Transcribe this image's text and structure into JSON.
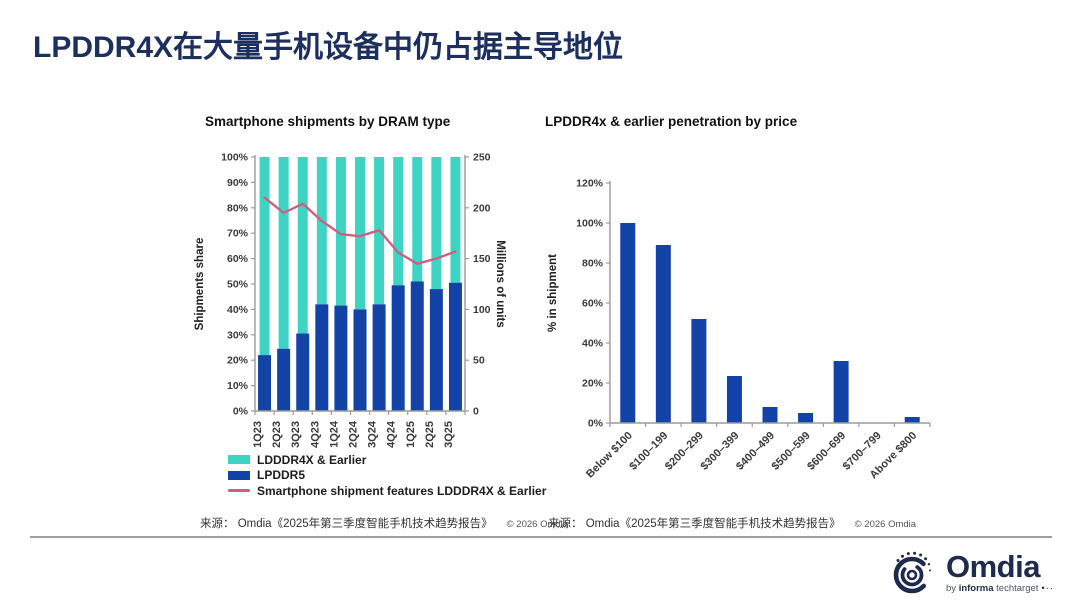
{
  "page": {
    "title": "LPDDR4X在大量手机设备中仍占据主导地位",
    "colors": {
      "title_navy": "#1c2f5e",
      "teal": "#3dd4c4",
      "blue": "#1443a8",
      "pink": "#cf5f80",
      "axis_gray": "#9b9b9b",
      "tick_text": "#3a3a3a"
    }
  },
  "chart_data": [
    {
      "type": "bar",
      "subtype": "stacked-100-bar-with-line",
      "title": "Smartphone shipments by DRAM type",
      "categories": [
        "1Q23",
        "2Q23",
        "3Q23",
        "4Q23",
        "1Q24",
        "2Q24",
        "3Q24",
        "4Q24",
        "1Q25",
        "2Q25",
        "3Q25"
      ],
      "series": [
        {
          "name": "LDDDR4X & Earlier",
          "type": "bar",
          "color": "#3dd4c4",
          "values": [
            78,
            75.5,
            69.5,
            58,
            58.5,
            60,
            58,
            50.5,
            49,
            52,
            49.5
          ]
        },
        {
          "name": "LPDDR5",
          "type": "bar",
          "color": "#1443a8",
          "values": [
            22,
            24.5,
            30.5,
            42,
            41.5,
            40,
            42,
            49.5,
            51,
            48,
            50.5
          ]
        },
        {
          "name": "Smartphone shipment features LDDDR4X & Earlier",
          "type": "line",
          "axis": "right",
          "color": "#cf5f80",
          "values_millions": [
            210,
            195,
            204,
            187,
            174,
            172,
            178,
            156,
            145,
            150,
            157
          ]
        }
      ],
      "ylabel_left": "Shipments share",
      "ylabel_right": "Millions of units",
      "ylim_left": [
        0,
        100
      ],
      "ylim_right": [
        0,
        250
      ],
      "yticks_left": [
        "0%",
        "10%",
        "20%",
        "30%",
        "40%",
        "50%",
        "60%",
        "70%",
        "80%",
        "90%",
        "100%"
      ],
      "yticks_right": [
        "0",
        "50",
        "100",
        "150",
        "200",
        "250"
      ],
      "legend_position": "bottom-left",
      "grid": false
    },
    {
      "type": "bar",
      "title": "LPDDR4x & earlier penetration by price",
      "categories": [
        "Below $100",
        "$100–199",
        "$200–299",
        "$300–399",
        "$400–499",
        "$500–599",
        "$600–699",
        "$700–799",
        "Above $800"
      ],
      "values": [
        100,
        89,
        52,
        23.5,
        8,
        5,
        31,
        0,
        3
      ],
      "bar_color": "#1443a8",
      "ylabel": "% in shipment",
      "xlabel": "",
      "ylim": [
        0,
        120
      ],
      "yticks": [
        "0%",
        "20%",
        "40%",
        "60%",
        "80%",
        "100%",
        "120%"
      ],
      "grid": false
    }
  ],
  "sources": {
    "left": {
      "text": "来源： Omdia《2025年第三季度智能手机技术趋势报告》",
      "copyright": "© 2026 Omdia"
    },
    "right": {
      "text": "来源： Omdia《2025年第三季度智能手机技术趋势报告》",
      "copyright": "© 2026 Omdia"
    }
  },
  "footer": {
    "logo_text": "Omdia",
    "logo_by": "by",
    "logo_informa": "informa",
    "logo_techtarget": "techtarget",
    "logo_dots": "•··"
  }
}
